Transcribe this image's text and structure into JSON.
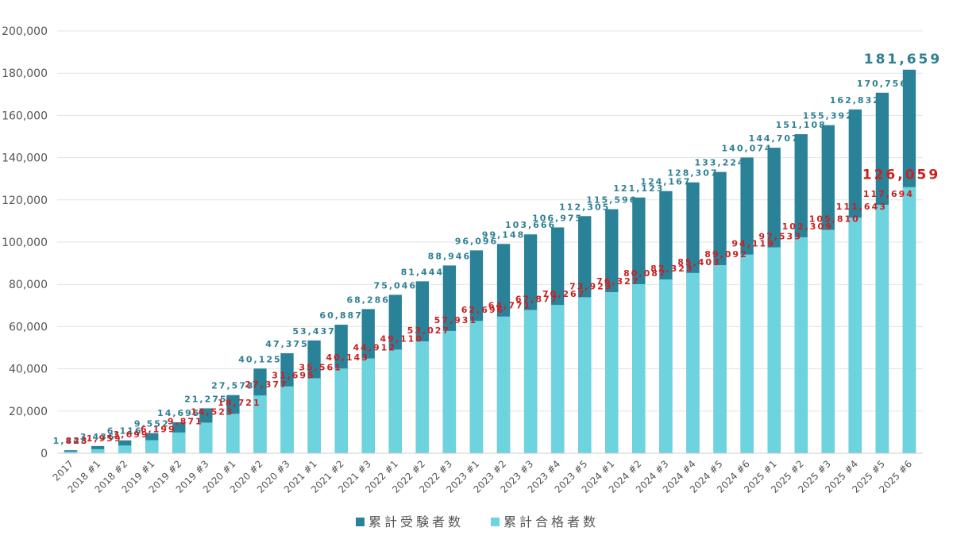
{
  "chart_data": {
    "type": "bar",
    "categories": [
      "2017",
      "2018 #1",
      "2018 #2",
      "2019 #1",
      "2019 #2",
      "2019 #3",
      "2020 #1",
      "2020 #2",
      "2020 #3",
      "2021 #1",
      "2021 #2",
      "2021 #3",
      "2022 #1",
      "2022 #2",
      "2022 #3",
      "2023 #1",
      "2023 #2",
      "2023 #3",
      "2023 #4",
      "2023 #5",
      "2024 #1",
      "2024 #2",
      "2024 #3",
      "2024 #4",
      "2024 #5",
      "2024 #6",
      "2025 #1",
      "2025 #2",
      "2025 #3",
      "2025 #4",
      "2025 #5",
      "2025 #6"
    ],
    "series": [
      {
        "name": "累計受験者数",
        "color": "#2a8299",
        "label_color": "#2e7f94",
        "values": [
          1448,
          3436,
          6116,
          9552,
          14695,
          21275,
          27573,
          40125,
          47375,
          53437,
          60887,
          68286,
          75046,
          81444,
          88946,
          96096,
          99148,
          103666,
          106975,
          112305,
          115596,
          121123,
          124167,
          128307,
          133224,
          140074,
          144707,
          151108,
          155392,
          162832,
          170756,
          181659
        ],
        "value_labels": [
          "1,448",
          "3,436",
          "6,116",
          "9,552",
          "14,695",
          "21,275",
          "27,573",
          "40,125",
          "47,375",
          "53,437",
          "60,887",
          "68,286",
          "75,046",
          "81,444",
          "88,946",
          "96,096",
          "99,148",
          "103,666",
          "106,975",
          "112,305",
          "115,596",
          "121,123",
          "124,167",
          "128,307",
          "133,224",
          "140,074",
          "144,707",
          "151,108",
          "155,392",
          "162,832",
          "170,756",
          "181,659"
        ]
      },
      {
        "name": "累計合格者数",
        "color": "#6dd3df",
        "label_color": "#cc1f1f",
        "values": [
          823,
          1959,
          3699,
          6199,
          9871,
          14523,
          18721,
          27377,
          31695,
          35561,
          40143,
          44912,
          49110,
          53027,
          57931,
          62696,
          64771,
          67877,
          70267,
          73929,
          76327,
          80087,
          82323,
          85403,
          89092,
          94119,
          97533,
          102309,
          105810,
          111643,
          117694,
          126059
        ],
        "value_labels": [
          "823",
          "1,959",
          "3,699",
          "6,199",
          "9,871",
          "14,523",
          "18,721",
          "27,377",
          "31,695",
          "35,561",
          "40,143",
          "44,912",
          "49,110",
          "53,027",
          "57,931",
          "62,696",
          "64,771",
          "67,877",
          "70,267",
          "73,929",
          "76,327",
          "80,087",
          "82,323",
          "85,403",
          "89,092",
          "94,119",
          "97,533",
          "102,309",
          "105,810",
          "111,643",
          "117,694",
          "126,059"
        ]
      }
    ],
    "ylim": [
      0,
      200000
    ],
    "yticks": [
      0,
      {
        "value": 20000,
        "label": "20,000"
      },
      {
        "value": 40000,
        "label": "40,000"
      },
      {
        "value": 60000,
        "label": "60,000"
      },
      {
        "value": 80000,
        "label": "80,000"
      },
      {
        "value": 100000,
        "label": "100,000"
      },
      {
        "value": 120000,
        "label": "120,000"
      },
      {
        "value": 140000,
        "label": "140,000"
      },
      {
        "value": 160000,
        "label": "160,000"
      },
      {
        "value": 180000,
        "label": "180,000"
      },
      {
        "value": 200000,
        "label": "200,000"
      }
    ],
    "grid": true,
    "legend": "bottom"
  }
}
